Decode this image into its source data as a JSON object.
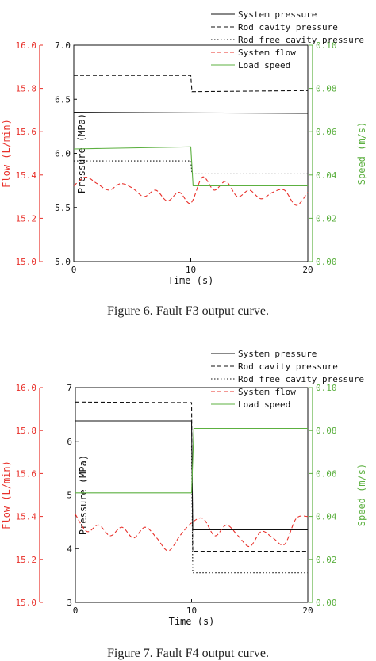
{
  "captions": [
    "Figure 6.    Fault F3 output curve.",
    "Figure 7.    Fault F4 output curve."
  ],
  "colors": {
    "flow_axis": "#e8302a",
    "speed_axis": "#5cb040",
    "pressure_axis": "#111111"
  },
  "chart_data": [
    {
      "type": "line",
      "xlabel": "Time (s)",
      "xlim": [
        0,
        20
      ],
      "xticks": [
        "0",
        "10",
        "20"
      ],
      "axes": {
        "pressure": {
          "label": "Pressure (MPa)",
          "range": [
            5.0,
            7.0
          ],
          "ticks": [
            "5.0",
            "5.5",
            "6.0",
            "6.5",
            "7.0"
          ]
        },
        "flow": {
          "label": "Flow (L/min)",
          "range": [
            15.0,
            16.0
          ],
          "ticks": [
            "15.0",
            "15.2",
            "15.4",
            "15.6",
            "15.8",
            "16.0"
          ]
        },
        "speed": {
          "label": "Speed (m/s)",
          "range": [
            0.0,
            0.1
          ],
          "ticks": [
            "0.00",
            "0.02",
            "0.04",
            "0.06",
            "0.08",
            "0.10"
          ]
        }
      },
      "legend_position": "top-right",
      "series": [
        {
          "name": "System pressure",
          "axis": "pressure",
          "style": "solid",
          "color": "#111111",
          "x": [
            0,
            20
          ],
          "y": [
            6.38,
            6.37
          ]
        },
        {
          "name": "Rod cavity pressure",
          "axis": "pressure",
          "style": "dashed",
          "color": "#111111",
          "x": [
            0,
            10,
            10.1,
            20
          ],
          "y": [
            6.72,
            6.72,
            6.57,
            6.58
          ]
        },
        {
          "name": "Rod free cavity pressure",
          "axis": "pressure",
          "style": "dotted",
          "color": "#111111",
          "x": [
            0,
            10,
            10.1,
            20
          ],
          "y": [
            5.93,
            5.93,
            5.81,
            5.81
          ]
        },
        {
          "name": "System flow",
          "axis": "flow",
          "style": "dashed",
          "color": "#e8302a",
          "x": [
            0,
            1,
            2,
            3,
            4,
            5,
            6,
            7,
            8,
            9,
            10,
            11,
            12,
            13,
            14,
            15,
            16,
            17,
            18,
            19,
            20
          ],
          "y": [
            15.35,
            15.39,
            15.36,
            15.33,
            15.36,
            15.34,
            15.3,
            15.33,
            15.28,
            15.32,
            15.27,
            15.39,
            15.33,
            15.37,
            15.3,
            15.33,
            15.29,
            15.32,
            15.33,
            15.26,
            15.32
          ]
        },
        {
          "name": "Load speed",
          "axis": "speed",
          "style": "solid",
          "color": "#5cb040",
          "x": [
            0,
            10,
            10.2,
            20
          ],
          "y": [
            0.052,
            0.053,
            0.035,
            0.035
          ]
        }
      ]
    },
    {
      "type": "line",
      "xlabel": "Time (s)",
      "xlim": [
        0,
        20
      ],
      "xticks": [
        "0",
        "10",
        "20"
      ],
      "axes": {
        "pressure": {
          "label": "Pressure (MPa)",
          "range": [
            3,
            7
          ],
          "ticks": [
            "3",
            "4",
            "5",
            "6",
            "7"
          ]
        },
        "flow": {
          "label": "Flow (L/min)",
          "range": [
            15.0,
            16.0
          ],
          "ticks": [
            "15.0",
            "15.2",
            "15.4",
            "15.6",
            "15.8",
            "16.0"
          ]
        },
        "speed": {
          "label": "Speed (m/s)",
          "range": [
            0.0,
            0.1
          ],
          "ticks": [
            "0.00",
            "0.02",
            "0.04",
            "0.06",
            "0.08",
            "0.10"
          ]
        }
      },
      "legend_position": "top-right",
      "series": [
        {
          "name": "System pressure",
          "axis": "pressure",
          "style": "solid",
          "color": "#111111",
          "x": [
            0,
            10,
            10.1,
            20
          ],
          "y": [
            6.38,
            6.38,
            4.35,
            4.35
          ]
        },
        {
          "name": "Rod cavity pressure",
          "axis": "pressure",
          "style": "dashed",
          "color": "#111111",
          "x": [
            0,
            10,
            10.1,
            20
          ],
          "y": [
            6.73,
            6.72,
            3.95,
            3.95
          ]
        },
        {
          "name": "Rod free cavity pressure",
          "axis": "pressure",
          "style": "dotted",
          "color": "#111111",
          "x": [
            0,
            10,
            10.1,
            20
          ],
          "y": [
            5.93,
            5.93,
            3.55,
            3.55
          ]
        },
        {
          "name": "System flow",
          "axis": "flow",
          "style": "dashed",
          "color": "#e8302a",
          "x": [
            0,
            1,
            2,
            3,
            4,
            5,
            6,
            7,
            8,
            9,
            10,
            11,
            12,
            13,
            14,
            15,
            16,
            17,
            18,
            19,
            20
          ],
          "y": [
            15.41,
            15.33,
            15.36,
            15.31,
            15.35,
            15.3,
            15.35,
            15.3,
            15.24,
            15.31,
            15.37,
            15.39,
            15.31,
            15.36,
            15.31,
            15.26,
            15.33,
            15.3,
            15.27,
            15.39,
            15.4
          ]
        },
        {
          "name": "Load speed",
          "axis": "speed",
          "style": "solid",
          "color": "#5cb040",
          "x": [
            0,
            10,
            10.2,
            20
          ],
          "y": [
            0.051,
            0.051,
            0.081,
            0.081
          ]
        }
      ]
    }
  ]
}
